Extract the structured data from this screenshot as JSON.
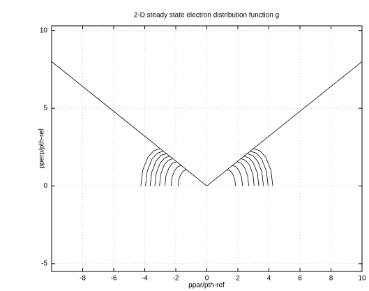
{
  "chart_data": {
    "type": "line",
    "title": "2-D steady state electron distribution function g",
    "xlabel": "ppar/pth-ref",
    "ylabel": "pperp/pth-ref",
    "xlim": [
      -10,
      10
    ],
    "xticks": [
      -8,
      -6,
      -4,
      -2,
      0,
      2,
      4,
      6,
      8,
      10
    ],
    "ylim": [
      -5.5,
      10.3
    ],
    "yticks": [
      -5,
      0,
      5,
      10
    ],
    "grid": true,
    "series": [
      {
        "color": "#000000",
        "x": [
          -10,
          0,
          10
        ],
        "y": [
          8,
          0,
          8
        ]
      },
      {
        "color": "#000000",
        "x": [
          -4.25,
          -4.13,
          -3.8,
          -3.43,
          -3.0
        ],
        "y": [
          0,
          1.02,
          1.84,
          2.26,
          2.4
        ]
      },
      {
        "color": "#000000",
        "x": [
          -3.95,
          -3.84,
          -3.54,
          -3.19,
          -2.8
        ],
        "y": [
          0,
          0.95,
          1.72,
          2.11,
          2.24
        ]
      },
      {
        "color": "#000000",
        "x": [
          -3.65,
          -3.55,
          -3.28,
          -2.96,
          -2.6
        ],
        "y": [
          0,
          0.88,
          1.59,
          1.96,
          2.08
        ]
      },
      {
        "color": "#000000",
        "x": [
          -3.35,
          -3.26,
          -3.01,
          -2.72,
          -2.4
        ],
        "y": [
          0,
          0.81,
          1.47,
          1.8,
          1.92
        ]
      },
      {
        "color": "#000000",
        "x": [
          -3.05,
          -2.97,
          -2.75,
          -2.49,
          -2.2
        ],
        "y": [
          0,
          0.74,
          1.35,
          1.65,
          1.76
        ]
      },
      {
        "color": "#000000",
        "x": [
          -2.7,
          -2.63,
          -2.43,
          -2.21,
          -1.95
        ],
        "y": [
          0,
          0.66,
          1.19,
          1.47,
          1.56
        ]
      },
      {
        "color": "#000000",
        "x": [
          -2.3,
          -2.24,
          -2.07,
          -1.87,
          -1.65
        ],
        "y": [
          0,
          0.56,
          1.01,
          1.24,
          1.32
        ]
      },
      {
        "color": "#000000",
        "x": [
          -1.85,
          -1.8,
          -1.65,
          -1.49,
          -1.3
        ],
        "y": [
          0,
          0.44,
          0.8,
          0.98,
          1.04
        ]
      },
      {
        "color": "#000000",
        "x": [
          4.25,
          4.13,
          3.8,
          3.43,
          3.0
        ],
        "y": [
          0,
          1.02,
          1.84,
          2.26,
          2.4
        ]
      },
      {
        "color": "#000000",
        "x": [
          3.95,
          3.84,
          3.54,
          3.19,
          2.8
        ],
        "y": [
          0,
          0.95,
          1.72,
          2.11,
          2.24
        ]
      },
      {
        "color": "#000000",
        "x": [
          3.65,
          3.55,
          3.28,
          2.96,
          2.6
        ],
        "y": [
          0,
          0.88,
          1.59,
          1.96,
          2.08
        ]
      },
      {
        "color": "#000000",
        "x": [
          3.35,
          3.26,
          3.01,
          2.72,
          2.4
        ],
        "y": [
          0,
          0.81,
          1.47,
          1.8,
          1.92
        ]
      },
      {
        "color": "#000000",
        "x": [
          3.05,
          2.97,
          2.75,
          2.49,
          2.2
        ],
        "y": [
          0,
          0.74,
          1.35,
          1.65,
          1.76
        ]
      },
      {
        "color": "#000000",
        "x": [
          2.7,
          2.63,
          2.43,
          2.21,
          1.95
        ],
        "y": [
          0,
          0.66,
          1.19,
          1.47,
          1.56
        ]
      },
      {
        "color": "#000000",
        "x": [
          2.3,
          2.24,
          2.07,
          1.87,
          1.65
        ],
        "y": [
          0,
          0.56,
          1.01,
          1.24,
          1.32
        ]
      },
      {
        "color": "#000000",
        "x": [
          1.85,
          1.8,
          1.65,
          1.49,
          1.3
        ],
        "y": [
          0,
          0.44,
          0.8,
          0.98,
          1.04
        ]
      }
    ]
  }
}
